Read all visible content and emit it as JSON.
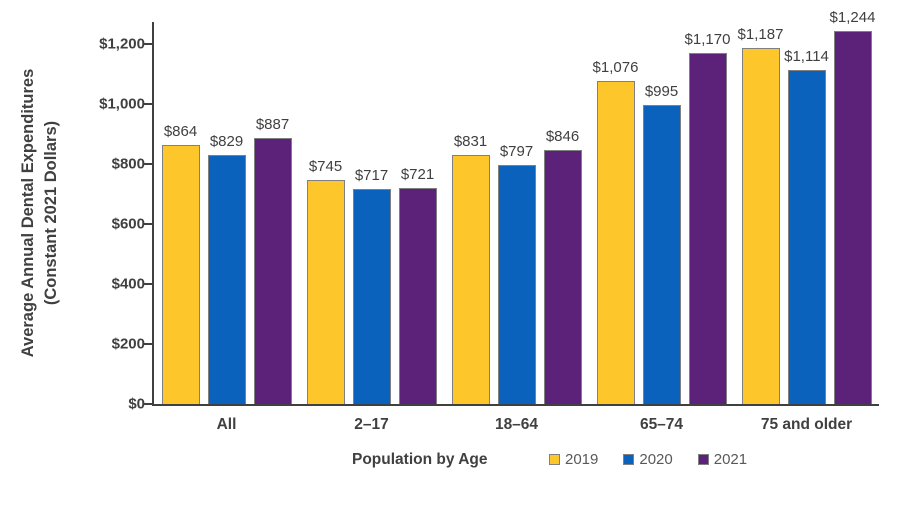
{
  "chart_data": {
    "type": "bar",
    "title": "",
    "categories": [
      "All",
      "2–17",
      "18–64",
      "65–74",
      "75 and older"
    ],
    "series": [
      {
        "name": "2019",
        "color": "#FDC72C",
        "values": [
          864,
          745,
          831,
          1076,
          1187
        ],
        "labels": [
          "$864",
          "$745",
          "$831",
          "$1,076",
          "$1,187"
        ]
      },
      {
        "name": "2020",
        "color": "#0A62BC",
        "values": [
          829,
          717,
          797,
          995,
          1114
        ],
        "labels": [
          "$829",
          "$717",
          "$797",
          "$995",
          "$1,114"
        ]
      },
      {
        "name": "2021",
        "color": "#5C2178",
        "values": [
          887,
          721,
          846,
          1170,
          1244
        ],
        "labels": [
          "$887",
          "$721",
          "$846",
          "$1,170",
          "$1,244"
        ]
      }
    ],
    "ylabel_line1": "Average Annual Dental Expenditures",
    "ylabel_line2": "(Constant 2021 Dollars)",
    "xlabel": "Population by Age",
    "ylim": [
      0,
      1273
    ],
    "yticks": [
      {
        "value": 0,
        "label": "$0"
      },
      {
        "value": 200,
        "label": "$200"
      },
      {
        "value": 400,
        "label": "$400"
      },
      {
        "value": 600,
        "label": "$600"
      },
      {
        "value": 800,
        "label": "$800"
      },
      {
        "value": 1000,
        "label": "$1,000"
      },
      {
        "value": 1200,
        "label": "$1,200"
      }
    ],
    "grid": false,
    "legend_position": "bottom-right",
    "bar_border_color": "#808080",
    "axis_color": "#404040",
    "label_color": "#404040",
    "legend_text_color": "#595959"
  }
}
